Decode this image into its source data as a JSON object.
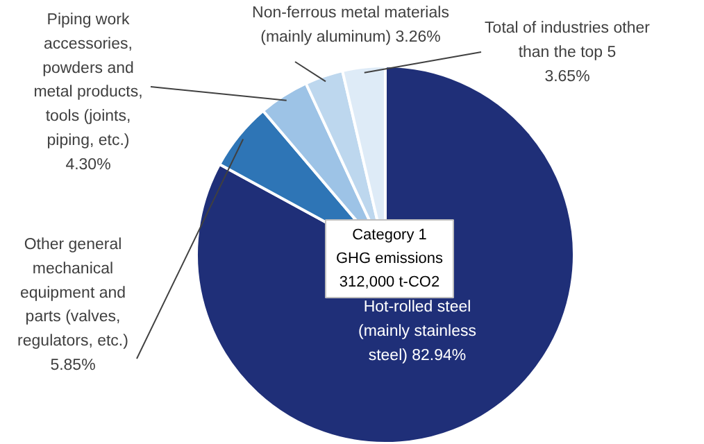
{
  "chart_data": {
    "type": "pie",
    "categories": [
      "Hot-rolled steel\n(mainly stainless\nsteel)",
      "Other general\nmechanical\nequipment and\nparts (valves,\nregulators, etc.)",
      "Piping work\naccessories,\npowders and\nmetal products,\ntools (joints,\npiping, etc.)",
      "Non-ferrous metal materials\n(mainly aluminum)",
      "Total of industries other\nthan the top 5"
    ],
    "values": [
      82.94,
      5.85,
      4.3,
      3.26,
      3.65
    ],
    "value_labels": [
      "82.94%",
      "5.85%",
      "4.30%",
      "3.26%",
      "3.65%"
    ],
    "colors": [
      "#1f2f78",
      "#2e75b6",
      "#9dc3e6",
      "#bdd7ee",
      "#deebf7"
    ],
    "annotations": [
      "Category 1\nGHG emissions\n312,000 t-CO2"
    ]
  }
}
